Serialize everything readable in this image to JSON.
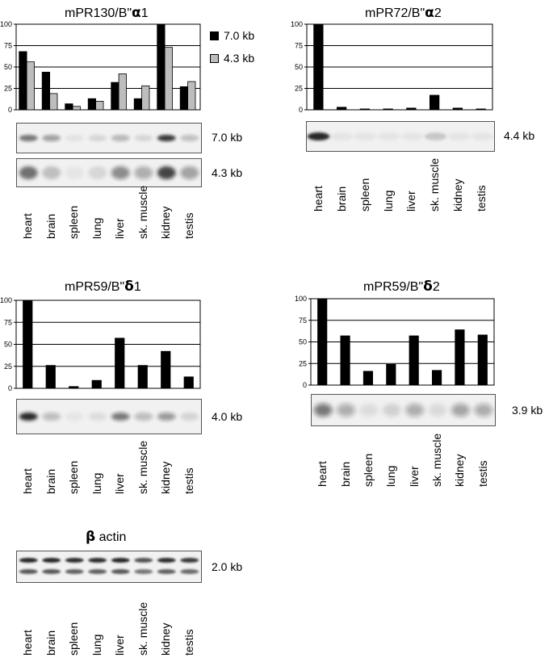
{
  "lanes": [
    "heart",
    "brain",
    "spleen",
    "lung",
    "liver",
    "sk. muscle",
    "kidney",
    "testis"
  ],
  "colors": {
    "series_primary": "#000000",
    "series_secondary": "#bdbdbd",
    "band": "#1a1a1a",
    "blot_bg": "#f1f1f1"
  },
  "legend": [
    {
      "label": "7.0 kb",
      "color": "#000000"
    },
    {
      "label": "4.3 kb",
      "color": "#bdbdbd"
    }
  ],
  "panels": {
    "a1": {
      "title": "mPR130/B\"",
      "symbol": "α",
      "sub": "1",
      "blots": [
        "7.0 kb",
        "4.3 kb"
      ]
    },
    "a2": {
      "title": "mPR72/B\"",
      "symbol": "α",
      "sub": "2",
      "blots": [
        "4.4 kb"
      ]
    },
    "d1": {
      "title": "mPR59/B\"",
      "symbol": "δ",
      "sub": "1",
      "blots": [
        "4.0 kb"
      ]
    },
    "d2": {
      "title": "mPR59/B\"",
      "symbol": "δ",
      "sub": "2",
      "blots": [
        "3.9 kb"
      ]
    },
    "actin": {
      "symbol": "β",
      "title": "actin",
      "blots": [
        "2.0 kb"
      ]
    }
  },
  "chart_data": [
    {
      "type": "bar",
      "categories": [
        "heart",
        "brain",
        "spleen",
        "lung",
        "liver",
        "sk. muscle",
        "kidney",
        "testis"
      ],
      "series": [
        {
          "name": "7.0 kb",
          "values": [
            68,
            44,
            7,
            13,
            32,
            13,
            100,
            27
          ]
        },
        {
          "name": "4.3 kb",
          "values": [
            56,
            19,
            4,
            10,
            42,
            28,
            73,
            33
          ]
        }
      ],
      "title": "mPR130/B\" α1",
      "yticks": [
        "0",
        "25",
        "50",
        "75",
        "100"
      ],
      "ylim": [
        0,
        100
      ],
      "grid": true,
      "legend": "right"
    },
    {
      "type": "bar",
      "categories": [
        "heart",
        "brain",
        "spleen",
        "lung",
        "liver",
        "sk. muscle",
        "kidney",
        "testis"
      ],
      "series": [
        {
          "values": [
            100,
            3,
            1,
            1,
            2,
            17,
            2,
            1
          ]
        }
      ],
      "title": "mPR72/B\" α2",
      "yticks": [
        "0",
        "25",
        "50",
        "75",
        "100"
      ],
      "ylim": [
        0,
        100
      ],
      "grid": true
    },
    {
      "type": "bar",
      "categories": [
        "heart",
        "brain",
        "spleen",
        "lung",
        "liver",
        "sk. muscle",
        "kidney",
        "testis"
      ],
      "series": [
        {
          "values": [
            100,
            26,
            2,
            9,
            57,
            26,
            42,
            13
          ]
        }
      ],
      "title": "mPR59/B\" δ1",
      "yticks": [
        "0",
        "25",
        "50",
        "75",
        "100"
      ],
      "ylim": [
        0,
        100
      ],
      "grid": true
    },
    {
      "type": "bar",
      "categories": [
        "heart",
        "brain",
        "spleen",
        "lung",
        "liver",
        "sk. muscle",
        "kidney",
        "testis"
      ],
      "series": [
        {
          "values": [
            100,
            57,
            16,
            24,
            57,
            17,
            64,
            58
          ]
        }
      ],
      "title": "mPR59/B\" δ2",
      "yticks": [
        "0",
        "25",
        "50",
        "75",
        "100"
      ],
      "ylim": [
        0,
        100
      ],
      "grid": true
    }
  ]
}
